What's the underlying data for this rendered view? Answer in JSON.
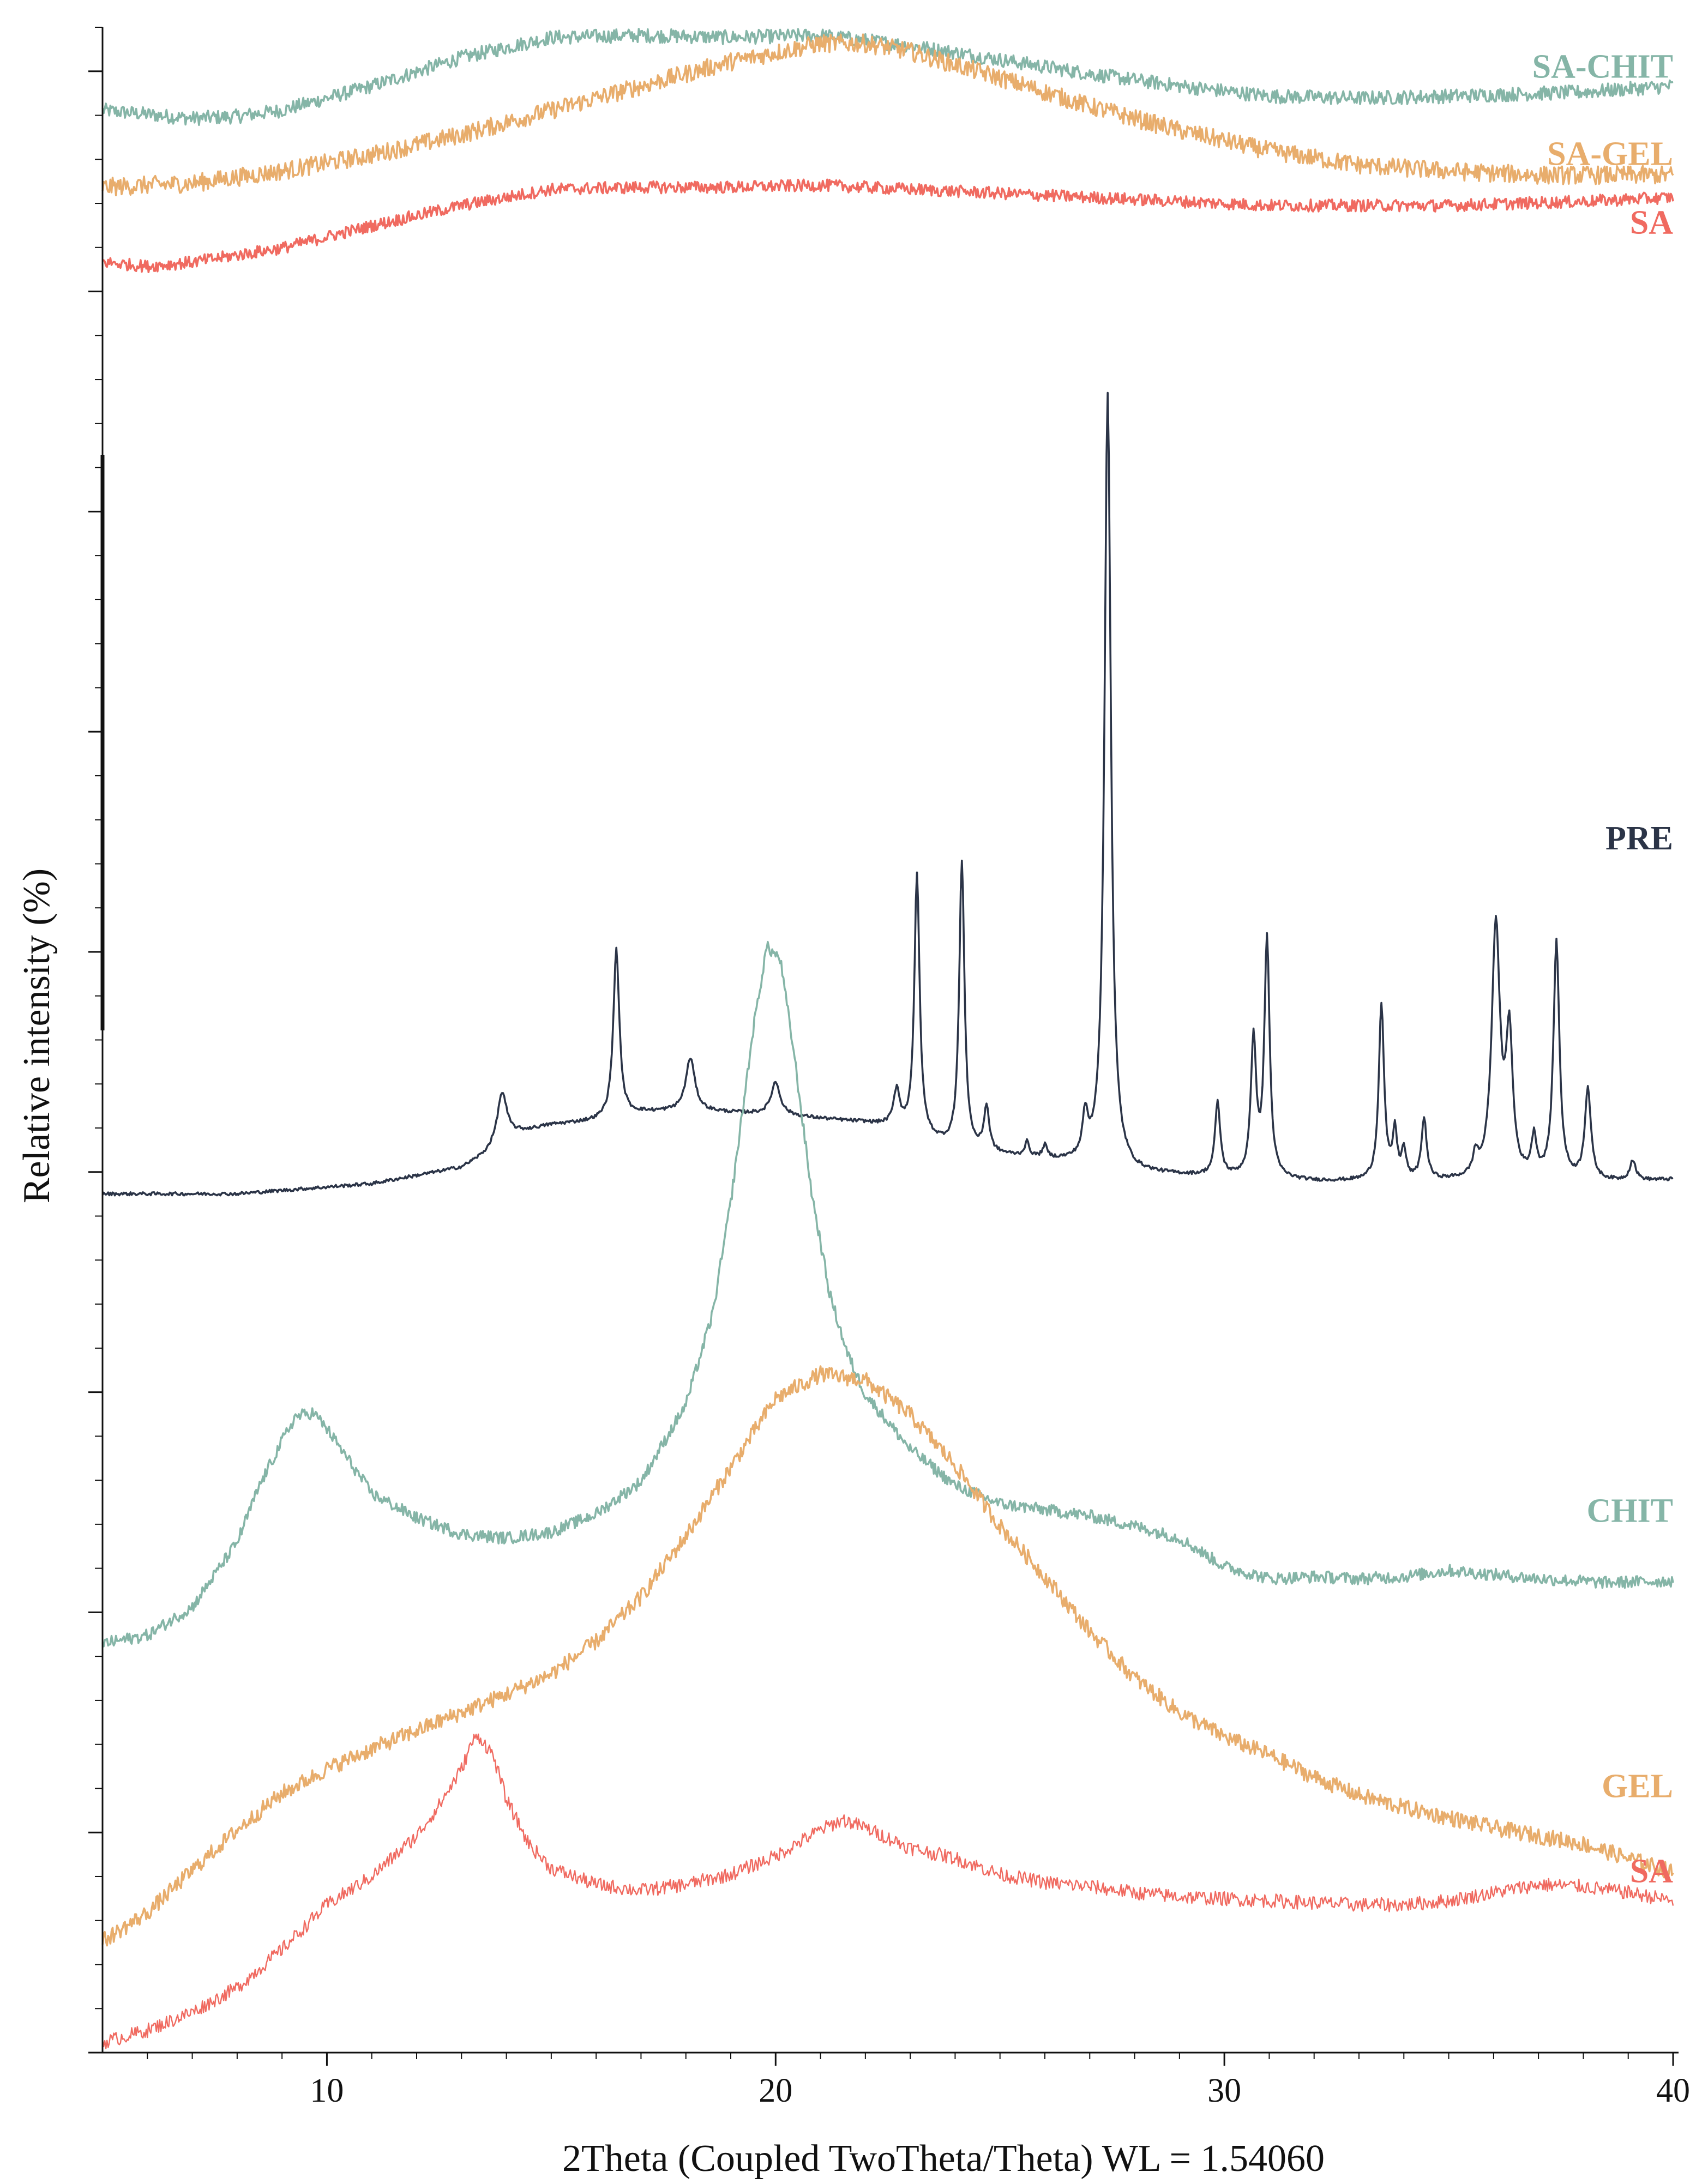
{
  "chart_data": {
    "type": "line",
    "title": "",
    "xlabel": "2Theta (Coupled TwoTheta/Theta) WL = 1.54060",
    "ylabel": "Relative intensity (%)",
    "xlim": [
      5,
      40
    ],
    "ylim": [
      0,
      100
    ],
    "x_ticks": [
      10,
      20,
      30,
      40
    ],
    "x_tick_labels": [
      "10",
      "20",
      "30",
      "40"
    ],
    "grid": false,
    "series": [
      {
        "name": "SA-CHIT",
        "color": "#85b5a7",
        "stroke_width": 3.6,
        "offset": 91.3,
        "label_value": 98.1,
        "noise": 0.35,
        "x": [
          5,
          7,
          8,
          9,
          11,
          13,
          15,
          17,
          19,
          21,
          23,
          25,
          27,
          29,
          31,
          33,
          35,
          38,
          40
        ],
        "y": [
          4.6,
          4.2,
          4.3,
          4.6,
          5.8,
          7.2,
          8.2,
          8.3,
          8.2,
          8.3,
          7.8,
          7.1,
          6.4,
          5.8,
          5.3,
          5.2,
          5.3,
          5.5,
          5.8
        ]
      },
      {
        "name": "SA-GEL",
        "color": "#e8ad6c",
        "stroke_width": 3.6,
        "offset": 87.3,
        "label_value": 93.8,
        "noise": 0.45,
        "x": [
          5,
          7,
          9,
          11,
          13,
          15,
          17,
          19,
          21,
          22,
          23,
          25,
          27,
          29,
          31,
          33,
          35,
          37,
          39,
          40
        ],
        "y": [
          4.8,
          5.0,
          5.6,
          6.4,
          7.4,
          8.6,
          9.8,
          11.0,
          11.9,
          11.9,
          11.5,
          10.2,
          8.8,
          7.6,
          6.6,
          5.9,
          5.6,
          5.4,
          5.4,
          5.4
        ]
      },
      {
        "name": "SA",
        "color": "#f06a60",
        "stroke_width": 3.6,
        "offset": 83.3,
        "label_value": 90.4,
        "noise": 0.3,
        "x": [
          5,
          6,
          7,
          9,
          11,
          13,
          15,
          17,
          19,
          21,
          23,
          25,
          27,
          29,
          31,
          33,
          35,
          38,
          40
        ],
        "y": [
          5.1,
          4.9,
          5.1,
          5.8,
          6.9,
          7.9,
          8.7,
          8.8,
          8.8,
          8.9,
          8.7,
          8.5,
          8.3,
          8.1,
          7.9,
          7.9,
          7.9,
          8.1,
          8.3
        ]
      },
      {
        "name": "PRE",
        "color": "#2b3447",
        "stroke_width": 3.6,
        "offset": 40.0,
        "label_value": 60.0,
        "noise": 0.08,
        "x": [
          5,
          8,
          11,
          13,
          13.5,
          14,
          15,
          16,
          16.5,
          17,
          18,
          20,
          22,
          22.6,
          23,
          23.6,
          24,
          24.6,
          25,
          27,
          27.5,
          28,
          30,
          31,
          32,
          33,
          34,
          35,
          36,
          36.5,
          37,
          38,
          39,
          40
        ],
        "y": [
          2.4,
          2.4,
          2.9,
          3.7,
          4.3,
          5.3,
          5.8,
          6.0,
          6.2,
          6.4,
          6.5,
          6.3,
          5.9,
          5.7,
          5.4,
          4.9,
          4.6,
          4.4,
          4.3,
          3.8,
          3.7,
          3.4,
          3.2,
          3.1,
          3.0,
          3.0,
          3.0,
          3.0,
          3.0,
          3.0,
          3.0,
          3.0,
          3.0,
          3.1
        ],
        "peaks": [
          {
            "x": 13.9,
            "h": 2.3,
            "w": 0.12
          },
          {
            "x": 16.45,
            "h": 8.3,
            "w": 0.08
          },
          {
            "x": 18.1,
            "h": 2.6,
            "w": 0.12
          },
          {
            "x": 20.0,
            "h": 1.6,
            "w": 0.12
          },
          {
            "x": 22.7,
            "h": 1.8,
            "w": 0.08
          },
          {
            "x": 23.15,
            "h": 12.8,
            "w": 0.07
          },
          {
            "x": 24.15,
            "h": 14.2,
            "w": 0.07
          },
          {
            "x": 24.7,
            "h": 2.2,
            "w": 0.07
          },
          {
            "x": 25.6,
            "h": 0.7,
            "w": 0.06
          },
          {
            "x": 26.0,
            "h": 0.6,
            "w": 0.06
          },
          {
            "x": 26.9,
            "h": 2.0,
            "w": 0.07
          },
          {
            "x": 27.4,
            "h": 38.2,
            "w": 0.085
          },
          {
            "x": 29.85,
            "h": 3.6,
            "w": 0.07
          },
          {
            "x": 30.65,
            "h": 6.8,
            "w": 0.07
          },
          {
            "x": 30.95,
            "h": 11.8,
            "w": 0.07
          },
          {
            "x": 33.5,
            "h": 8.7,
            "w": 0.07
          },
          {
            "x": 33.8,
            "h": 2.3,
            "w": 0.06
          },
          {
            "x": 34.0,
            "h": 1.4,
            "w": 0.06
          },
          {
            "x": 34.45,
            "h": 3.0,
            "w": 0.07
          },
          {
            "x": 35.6,
            "h": 1.0,
            "w": 0.07
          },
          {
            "x": 36.05,
            "h": 12.5,
            "w": 0.11
          },
          {
            "x": 36.35,
            "h": 6.8,
            "w": 0.09
          },
          {
            "x": 36.9,
            "h": 1.9,
            "w": 0.07
          },
          {
            "x": 37.4,
            "h": 11.7,
            "w": 0.08
          },
          {
            "x": 38.1,
            "h": 4.5,
            "w": 0.08
          },
          {
            "x": 39.1,
            "h": 1.0,
            "w": 0.08
          }
        ]
      },
      {
        "name": "CHIT",
        "color": "#85b5a7",
        "stroke_width": 3.6,
        "offset": 20.0,
        "label_value": 26.8,
        "noise": 0.3,
        "x": [
          5,
          6,
          7,
          8,
          8.5,
          9,
          9.3,
          9.7,
          10,
          10.5,
          11,
          12,
          13,
          14,
          15,
          16,
          17,
          18,
          18.6,
          19,
          19.5,
          19.8,
          20.1,
          20.4,
          20.8,
          21.2,
          21.6,
          22,
          23,
          24,
          25,
          26,
          27,
          28,
          29,
          30,
          31,
          32,
          33,
          34,
          35,
          37,
          38.5,
          40
        ],
        "y": [
          0.2,
          0.6,
          2.0,
          5.2,
          8.0,
          10.2,
          11.4,
          11.6,
          10.8,
          9.2,
          7.6,
          6.4,
          5.6,
          5.4,
          5.7,
          6.6,
          8.2,
          12.0,
          16.5,
          22.0,
          30.5,
          34.6,
          34.0,
          29.5,
          22.5,
          17.5,
          14.5,
          12.5,
          9.8,
          8.0,
          7.1,
          6.8,
          6.5,
          6.0,
          5.4,
          4.0,
          3.4,
          3.5,
          3.4,
          3.5,
          3.8,
          3.4,
          3.2,
          3.3
        ]
      },
      {
        "name": "GEL",
        "color": "#e8ad6c",
        "stroke_width": 3.6,
        "offset": 5.5,
        "label_value": 13.2,
        "noise": 0.4,
        "x": [
          5,
          6,
          7,
          8,
          9,
          10,
          11,
          12,
          13,
          14,
          15,
          16,
          17,
          18,
          19,
          20,
          21,
          22,
          23,
          24,
          25,
          26,
          27,
          28,
          29,
          30,
          31,
          32,
          33,
          34,
          35,
          36,
          37,
          38,
          39,
          40
        ],
        "y": [
          0.0,
          1.4,
          3.5,
          5.5,
          7.3,
          8.5,
          9.5,
          10.4,
          11.3,
          12.2,
          13.2,
          14.8,
          17.0,
          20.0,
          23.4,
          26.8,
          28.0,
          27.7,
          26.0,
          23.5,
          20.5,
          18.0,
          15.3,
          13.0,
          11.3,
          10.1,
          9.2,
          8.1,
          7.2,
          6.6,
          6.1,
          5.6,
          5.2,
          4.8,
          4.1,
          3.4
        ]
      },
      {
        "name": "SA",
        "color": "#f06a60",
        "stroke_width": 2.4,
        "offset": 0.5,
        "label_value": 9.0,
        "noise": 0.35,
        "x": [
          5,
          6,
          7,
          8,
          9,
          10,
          11,
          11.5,
          12,
          12.5,
          13,
          13.25,
          13.4,
          13.7,
          14,
          14.5,
          15,
          16,
          17,
          18,
          19,
          20,
          21,
          21.5,
          22,
          23,
          24,
          25,
          26,
          27,
          28,
          29,
          30,
          31,
          32,
          33,
          34,
          35,
          36,
          37,
          38,
          39,
          40
        ],
        "y": [
          0.0,
          0.6,
          1.5,
          2.7,
          4.6,
          6.8,
          8.2,
          9.2,
          10.2,
          11.7,
          13.5,
          14.9,
          15.1,
          14.2,
          12.0,
          9.8,
          8.6,
          7.8,
          7.5,
          7.8,
          8.3,
          9.2,
          10.5,
          11.0,
          10.6,
          9.6,
          9.1,
          8.3,
          7.9,
          7.7,
          7.4,
          7.2,
          7.1,
          7.0,
          6.9,
          6.8,
          6.8,
          7.0,
          7.4,
          7.8,
          7.7,
          7.4,
          7.0
        ]
      }
    ]
  }
}
